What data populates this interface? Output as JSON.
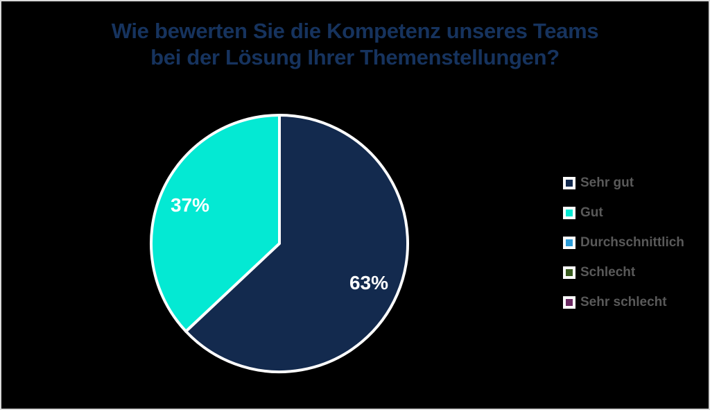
{
  "title": {
    "lines": [
      "Wie bewerten Sie die Kompetenz unseres Teams",
      "bei der Lösung Ihrer Themenstellungen?"
    ]
  },
  "chart_data": {
    "type": "pie",
    "title": "Wie bewerten Sie die Kompetenz unseres Teams bei der Lösung Ihrer Themenstellungen?",
    "unit": "percent",
    "direction": "clockwise",
    "start_angle_deg": 0,
    "legend_position": "right",
    "data_label_color": "#FFFFFF",
    "slices": [
      {
        "label": "Sehr gut",
        "value": 63,
        "data_label": "63%",
        "color": "#132A4E"
      },
      {
        "label": "Gut",
        "value": 37,
        "data_label": "37%",
        "color": "#04E9D3"
      }
    ],
    "legend": [
      {
        "label": "Sehr gut",
        "color": "#132A4E"
      },
      {
        "label": "Gut",
        "color": "#04E9D3"
      },
      {
        "label": "Durchschnittlich",
        "color": "#2B9CD8"
      },
      {
        "label": "Schlecht",
        "color": "#395C1F"
      },
      {
        "label": "Sehr schlecht",
        "color": "#6B2A62"
      }
    ]
  },
  "style": {
    "background": "#000000",
    "border_color": "#D9D9D9",
    "title_color": "#16335E",
    "legend_text_color": "#595959",
    "slice_outline_color": "#FFFFFF"
  }
}
